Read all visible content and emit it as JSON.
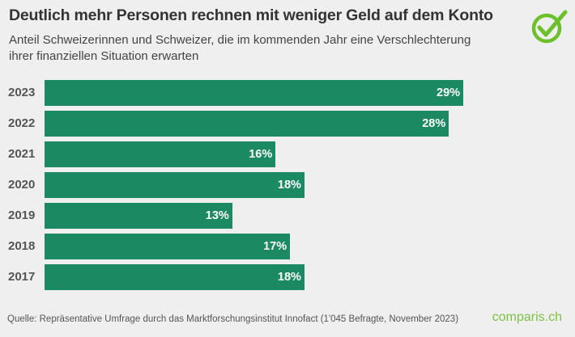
{
  "title": "Deutlich mehr Personen rechnen mit weniger Geld auf dem Konto",
  "subtitle": "Anteil Schweizerinnen und Schweizer, die im kommenden Jahr eine Verschlechterung ihrer finanziellen Situation erwarten",
  "source": "Quelle: Repräsentative Umfrage durch das Marktforschungsinstitut Innofact (1'045 Befragte, November 2023)",
  "brand": "comparis.ch",
  "logo_icon": "check-circle-icon",
  "colors": {
    "bar": "#1b8a62",
    "brand": "#7cc242"
  },
  "chart_data": {
    "type": "bar",
    "orientation": "horizontal",
    "categories": [
      "2023",
      "2022",
      "2021",
      "2020",
      "2019",
      "2018",
      "2017"
    ],
    "values": [
      29,
      28,
      16,
      18,
      13,
      17,
      18
    ],
    "labels": [
      "29%",
      "28%",
      "16%",
      "18%",
      "13%",
      "17%",
      "18%"
    ],
    "unit": "%",
    "grid": false
  }
}
